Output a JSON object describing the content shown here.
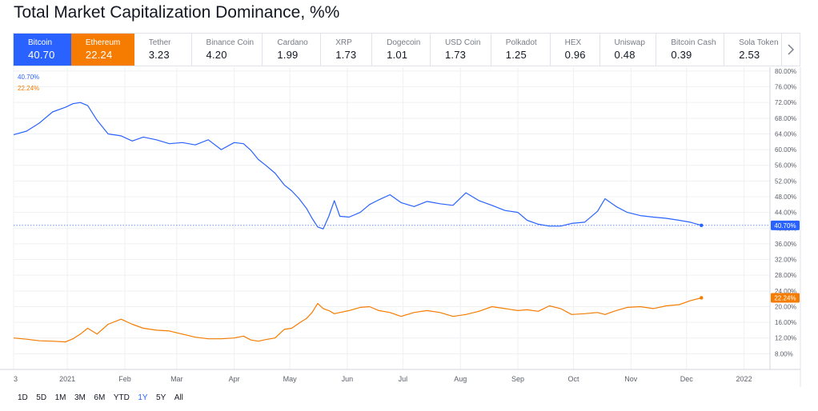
{
  "page": {
    "title": "Total Market Capitalization Dominance, %%"
  },
  "colors": {
    "bitcoin": "#2962ff",
    "ethereum": "#f57c00",
    "grid": "#eef0f3",
    "axis_text": "#5d606b"
  },
  "coins": [
    {
      "name": "Bitcoin",
      "value": "40.70",
      "active": true,
      "color": "#2962ff"
    },
    {
      "name": "Ethereum",
      "value": "22.24",
      "active": true,
      "color": "#f57c00"
    },
    {
      "name": "Tether",
      "value": "3.23"
    },
    {
      "name": "Binance Coin",
      "value": "4.20"
    },
    {
      "name": "Cardano",
      "value": "1.99"
    },
    {
      "name": "XRP",
      "value": "1.73"
    },
    {
      "name": "Dogecoin",
      "value": "1.01"
    },
    {
      "name": "USD Coin",
      "value": "1.73"
    },
    {
      "name": "Polkadot",
      "value": "1.25"
    },
    {
      "name": "HEX",
      "value": "0.96"
    },
    {
      "name": "Uniswap",
      "value": "0.48"
    },
    {
      "name": "Bitcoin Cash",
      "value": "0.39"
    },
    {
      "name": "Sola Token",
      "value": "2.53"
    }
  ],
  "next_icon": "chevron-right-icon",
  "time_ranges": [
    "1D",
    "5D",
    "1M",
    "3M",
    "6M",
    "YTD",
    "1Y",
    "5Y",
    "All"
  ],
  "selected_range": "1Y",
  "chart_data": {
    "type": "line",
    "title": "Total Market Capitalization Dominance, %%",
    "x_axis": {
      "ticks": [
        "3",
        "2021",
        "Feb",
        "Mar",
        "Apr",
        "May",
        "Jun",
        "Jul",
        "Aug",
        "Sep",
        "Oct",
        "Nov",
        "Dec",
        "2022"
      ],
      "range": [
        "2020-12-03",
        "2022-01-15"
      ]
    },
    "y_axis": {
      "ticks": [
        "80.00%",
        "76.00%",
        "72.00%",
        "68.00%",
        "64.00%",
        "60.00%",
        "56.00%",
        "52.00%",
        "48.00%",
        "44.00%",
        "40.00%",
        "36.00%",
        "32.00%",
        "28.00%",
        "24.00%",
        "20.00%",
        "16.00%",
        "12.00%",
        "8.00%"
      ],
      "ylim": [
        4,
        81
      ],
      "unit": "%",
      "position": "right"
    },
    "grid": true,
    "last_value_labels": [
      "40.70%",
      "22.24%"
    ],
    "series_value_labels": [
      "40.70%",
      "22.24%"
    ],
    "series": [
      {
        "name": "Bitcoin",
        "color": "#2962ff",
        "x": [
          "2020-12-03",
          "2020-12-10",
          "2020-12-17",
          "2020-12-24",
          "2020-12-31",
          "2021-01-04",
          "2021-01-08",
          "2021-01-12",
          "2021-01-17",
          "2021-01-23",
          "2021-01-30",
          "2021-02-05",
          "2021-02-11",
          "2021-02-18",
          "2021-02-25",
          "2021-03-04",
          "2021-03-11",
          "2021-03-18",
          "2021-03-25",
          "2021-04-01",
          "2021-04-06",
          "2021-04-10",
          "2021-04-14",
          "2021-04-18",
          "2021-04-23",
          "2021-04-28",
          "2021-05-02",
          "2021-05-06",
          "2021-05-10",
          "2021-05-13",
          "2021-05-16",
          "2021-05-19",
          "2021-05-22",
          "2021-05-25",
          "2021-05-28",
          "2021-06-02",
          "2021-06-08",
          "2021-06-13",
          "2021-06-18",
          "2021-06-24",
          "2021-06-30",
          "2021-07-07",
          "2021-07-14",
          "2021-07-21",
          "2021-07-28",
          "2021-08-04",
          "2021-08-11",
          "2021-08-18",
          "2021-08-25",
          "2021-09-01",
          "2021-09-06",
          "2021-09-12",
          "2021-09-18",
          "2021-09-24",
          "2021-09-30",
          "2021-10-07",
          "2021-10-14",
          "2021-10-18",
          "2021-10-24",
          "2021-10-30",
          "2021-11-06",
          "2021-11-13",
          "2021-11-20",
          "2021-11-27",
          "2021-12-03",
          "2021-12-09"
        ],
        "values": [
          63.8,
          64.7,
          66.8,
          69.6,
          70.8,
          71.7,
          72.0,
          71.2,
          67.5,
          64.0,
          63.5,
          62.2,
          63.2,
          62.5,
          61.5,
          61.8,
          61.2,
          62.5,
          60.0,
          61.8,
          61.5,
          59.8,
          57.5,
          56.0,
          54.0,
          51.0,
          49.5,
          47.5,
          45.0,
          42.5,
          40.3,
          39.8,
          43.0,
          47.0,
          43.0,
          42.8,
          44.0,
          46.0,
          47.2,
          48.5,
          46.5,
          45.5,
          46.8,
          46.2,
          45.8,
          49.0,
          47.0,
          45.8,
          44.5,
          44.0,
          42.0,
          41.0,
          40.5,
          40.5,
          41.2,
          41.5,
          44.3,
          47.5,
          45.5,
          44.0,
          43.2,
          42.8,
          42.5,
          42.0,
          41.5,
          40.7
        ]
      },
      {
        "name": "Ethereum",
        "color": "#f57c00",
        "x": [
          "2020-12-03",
          "2020-12-10",
          "2020-12-17",
          "2020-12-24",
          "2020-12-31",
          "2021-01-04",
          "2021-01-08",
          "2021-01-12",
          "2021-01-17",
          "2021-01-23",
          "2021-01-30",
          "2021-02-05",
          "2021-02-11",
          "2021-02-18",
          "2021-02-25",
          "2021-03-04",
          "2021-03-11",
          "2021-03-18",
          "2021-03-25",
          "2021-04-01",
          "2021-04-06",
          "2021-04-10",
          "2021-04-14",
          "2021-04-18",
          "2021-04-23",
          "2021-04-28",
          "2021-05-02",
          "2021-05-06",
          "2021-05-10",
          "2021-05-13",
          "2021-05-16",
          "2021-05-19",
          "2021-05-22",
          "2021-05-25",
          "2021-05-28",
          "2021-06-02",
          "2021-06-08",
          "2021-06-13",
          "2021-06-18",
          "2021-06-24",
          "2021-06-30",
          "2021-07-07",
          "2021-07-14",
          "2021-07-21",
          "2021-07-28",
          "2021-08-04",
          "2021-08-11",
          "2021-08-18",
          "2021-08-25",
          "2021-09-01",
          "2021-09-06",
          "2021-09-12",
          "2021-09-18",
          "2021-09-24",
          "2021-09-30",
          "2021-10-07",
          "2021-10-14",
          "2021-10-18",
          "2021-10-24",
          "2021-10-30",
          "2021-11-06",
          "2021-11-13",
          "2021-11-20",
          "2021-11-27",
          "2021-12-03",
          "2021-12-09"
        ],
        "values": [
          12.0,
          11.7,
          11.3,
          11.2,
          11.0,
          11.8,
          13.0,
          14.5,
          13.0,
          15.5,
          16.8,
          15.5,
          14.5,
          14.0,
          13.8,
          13.0,
          12.2,
          11.8,
          11.8,
          12.0,
          12.5,
          11.5,
          11.2,
          11.6,
          12.0,
          14.2,
          14.5,
          15.8,
          17.0,
          18.5,
          20.8,
          19.5,
          19.0,
          18.2,
          18.5,
          19.0,
          19.8,
          20.0,
          19.0,
          18.5,
          17.5,
          18.5,
          19.0,
          18.5,
          17.5,
          18.0,
          18.8,
          20.0,
          19.5,
          19.0,
          19.2,
          18.8,
          20.2,
          19.5,
          18.0,
          18.2,
          18.5,
          18.0,
          19.0,
          19.8,
          20.0,
          19.5,
          20.2,
          20.5,
          21.5,
          22.24
        ]
      }
    ]
  }
}
